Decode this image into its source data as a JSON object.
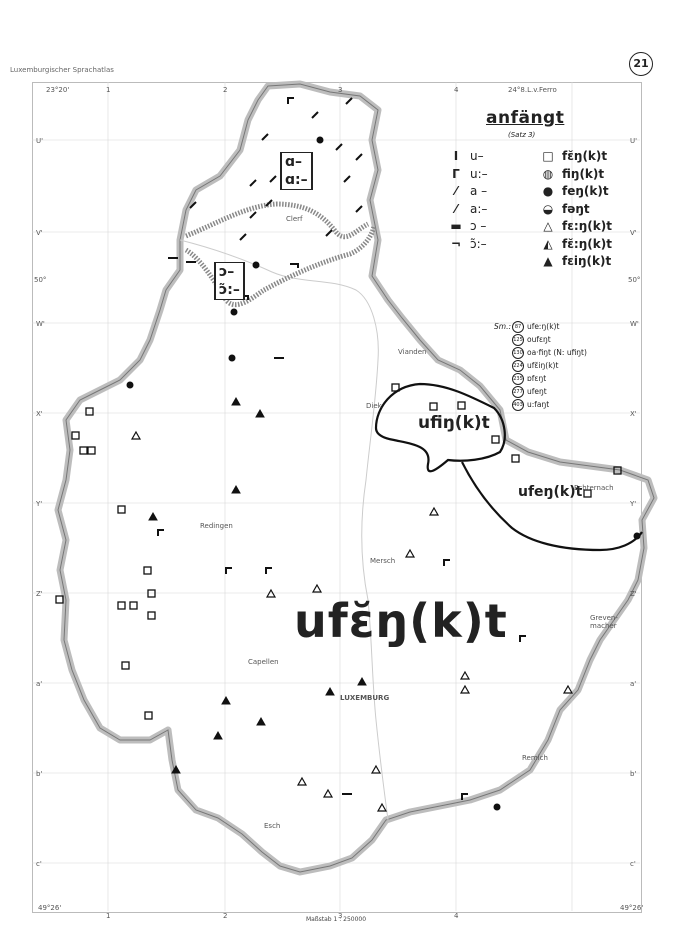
{
  "atlas_title": "Luxemburgischer Sprachatlas",
  "page_number": "21",
  "map_title": "anfängt",
  "subtitle": "(Satz 3)",
  "main_form": "ufɛ̆ŋ(k)t",
  "legend": [
    {
      "vowel_symbol": "I",
      "vowel": "u–",
      "form_symbol": "□",
      "form": "fɛ̆ŋ(k)t"
    },
    {
      "vowel_symbol": "Γ",
      "vowel": "u:–",
      "form_symbol": "◍",
      "form": "fiŋ(k)t"
    },
    {
      "vowel_symbol": "⁄",
      "vowel": "a –",
      "form_symbol": "●",
      "form": "feŋ(k)t"
    },
    {
      "vowel_symbol": "⁄",
      "vowel": "a:–",
      "form_symbol": "◒",
      "form": "fəŋt"
    },
    {
      "vowel_symbol": "▬",
      "vowel": "ɔ –",
      "form_symbol": "△",
      "form": "fɛ:ŋ(k)t"
    },
    {
      "vowel_symbol": "¬",
      "vowel": "ɔ̃:–",
      "form_symbol": "◭",
      "form": "fɛ̆:ŋ(k)t"
    },
    {
      "vowel_symbol": "",
      "vowel": "",
      "form_symbol": "▲",
      "form": "fɛiŋ(k)t"
    }
  ],
  "sm_label": "Sm.:",
  "special_forms": [
    {
      "num": "87",
      "form": "ufeːŋ(k)t"
    },
    {
      "num": "125",
      "form": "oufɛŋt"
    },
    {
      "num": "130",
      "form": "oa·fiŋt (N: ufiŋt)"
    },
    {
      "num": "224",
      "form": "ufɛ̆iŋ(k)t"
    },
    {
      "num": "235",
      "form": "ɒfɛŋt"
    },
    {
      "num": "277",
      "form": "ufeŋt"
    },
    {
      "num": "403",
      "form": "u:faŋt"
    }
  ],
  "regions": {
    "north_top": "ɑ–",
    "north_bottom": "ɑ:–",
    "mid_top": "ɔ–",
    "mid_bottom": "ɔ̃:–",
    "east_upper": "ufiŋ(k)t",
    "east_lower": "ufeŋ(k)t"
  },
  "places": {
    "clervaux": "Clerf",
    "vianden": "Vianden",
    "diekirch": "Diek",
    "redange": "Redingen",
    "mersch": "Mersch",
    "capellen": "Capellen",
    "luxemburg": "LUXEMBURG",
    "grevenmacher": "Greven-macher",
    "remich": "Remich",
    "echternach": "Echternach",
    "esch": "Esch"
  },
  "coordinates": {
    "lon_left": "23°20'",
    "lon_right": "24°8.L.v.Ferro",
    "lat_top": "50°",
    "lat_bottom": "49°26'"
  },
  "grid_rows": [
    "U'",
    "V'",
    "W'",
    "X'",
    "Y'",
    "Z'",
    "a'",
    "b'",
    "c'"
  ],
  "grid_cols": [
    "1",
    "2",
    "3",
    "4"
  ],
  "scale_text": "Maßstab 1 : 250000"
}
